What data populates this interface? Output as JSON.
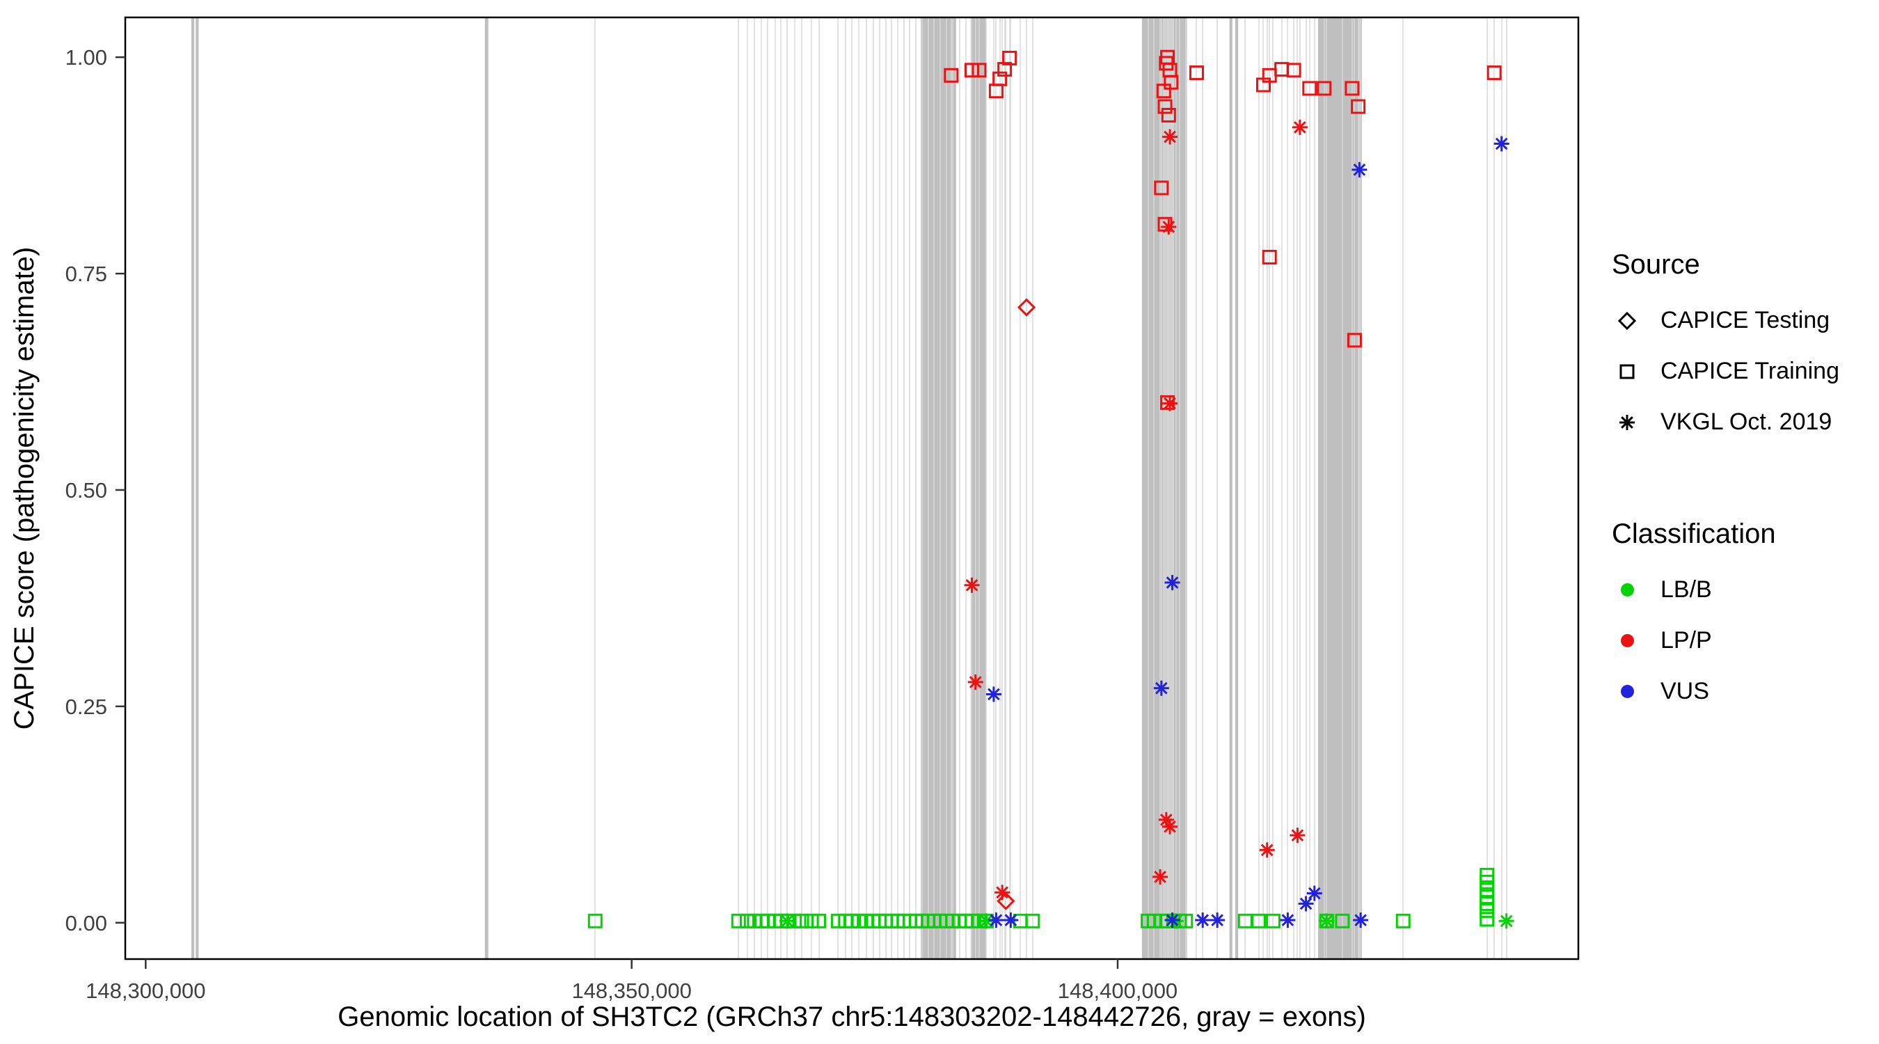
{
  "chart_data": {
    "type": "scatter",
    "title": "",
    "xlabel": "Genomic location of SH3TC2 (GRCh37 chr5:148303202-148442726, gray = exons)",
    "ylabel": "CAPICE score (pathogenicity estimate)",
    "xlim": [
      148297900,
      148447400
    ],
    "ylim": [
      -0.042,
      1.046
    ],
    "x_ticks": [
      {
        "value": 148300000,
        "label": "148,300,000"
      },
      {
        "value": 148350000,
        "label": "148,350,000"
      },
      {
        "value": 148400000,
        "label": "148,400,000"
      }
    ],
    "y_ticks": [
      {
        "value": 0.0,
        "label": "0.00"
      },
      {
        "value": 0.25,
        "label": "0.25"
      },
      {
        "value": 0.5,
        "label": "0.50"
      },
      {
        "value": 0.75,
        "label": "0.75"
      },
      {
        "value": 1.0,
        "label": "1.00"
      }
    ],
    "exon_color": "#bfbfbf",
    "variant_line_color": "#d9d9d9",
    "panel_border_color": "#000000",
    "colors": {
      "LB/B": "#00d400",
      "LP/P": "#ee1111",
      "VUS": "#2222dd"
    },
    "shapes": {
      "CAPICE Testing": "diamond",
      "CAPICE Training": "square",
      "VKGL Oct. 2019": "asterisk"
    },
    "exons": [
      [
        148304700,
        148305000
      ],
      [
        148305150,
        148305450
      ],
      [
        148334900,
        148335250
      ],
      [
        148379750,
        148383375
      ],
      [
        148384875,
        148386500
      ],
      [
        148402500,
        148407125
      ],
      [
        148411500,
        148411800
      ],
      [
        148412100,
        148412400
      ],
      [
        148420625,
        148425125
      ]
    ],
    "points": [
      [
        148346250,
        0.002,
        "square",
        "LB/B"
      ],
      [
        148361000,
        0.002,
        "square",
        "LB/B"
      ],
      [
        148361875,
        0.002,
        "square",
        "LB/B"
      ],
      [
        148362625,
        0.002,
        "square",
        "LB/B"
      ],
      [
        148363375,
        0.002,
        "square",
        "LB/B"
      ],
      [
        148364000,
        0.002,
        "square",
        "LB/B"
      ],
      [
        148364750,
        0.002,
        "square",
        "LB/B"
      ],
      [
        148365375,
        0.002,
        "square",
        "LB/B"
      ],
      [
        148366000,
        0.002,
        "square",
        "LB/B"
      ],
      [
        148366750,
        0.002,
        "square",
        "LB/B"
      ],
      [
        148367500,
        0.002,
        "square",
        "LB/B"
      ],
      [
        148368500,
        0.002,
        "square",
        "LB/B"
      ],
      [
        148369250,
        0.002,
        "square",
        "LB/B"
      ],
      [
        148371250,
        0.002,
        "square",
        "LB/B"
      ],
      [
        148372000,
        0.002,
        "square",
        "LB/B"
      ],
      [
        148372625,
        0.002,
        "square",
        "LB/B"
      ],
      [
        148373375,
        0.002,
        "square",
        "LB/B"
      ],
      [
        148374125,
        0.002,
        "square",
        "LB/B"
      ],
      [
        148374875,
        0.002,
        "square",
        "LB/B"
      ],
      [
        148375500,
        0.002,
        "square",
        "LB/B"
      ],
      [
        148376125,
        0.002,
        "square",
        "LB/B"
      ],
      [
        148376750,
        0.002,
        "square",
        "LB/B"
      ],
      [
        148377375,
        0.002,
        "square",
        "LB/B"
      ],
      [
        148378000,
        0.002,
        "square",
        "LB/B"
      ],
      [
        148378625,
        0.002,
        "square",
        "LB/B"
      ],
      [
        148379250,
        0.002,
        "square",
        "LB/B"
      ],
      [
        148379875,
        0.002,
        "square",
        "LB/B"
      ],
      [
        148380500,
        0.002,
        "square",
        "LB/B"
      ],
      [
        148381125,
        0.002,
        "square",
        "LB/B"
      ],
      [
        148381750,
        0.002,
        "square",
        "LB/B"
      ],
      [
        148382375,
        0.002,
        "square",
        "LB/B"
      ],
      [
        148383000,
        0.002,
        "square",
        "LB/B"
      ],
      [
        148383750,
        0.002,
        "square",
        "LB/B"
      ],
      [
        148384375,
        0.002,
        "square",
        "LB/B"
      ],
      [
        148385000,
        0.002,
        "square",
        "LB/B"
      ],
      [
        148385750,
        0.002,
        "square",
        "LB/B"
      ],
      [
        148386500,
        0.002,
        "square",
        "LB/B"
      ],
      [
        148390000,
        0.002,
        "square",
        "LB/B"
      ],
      [
        148391250,
        0.002,
        "square",
        "LB/B"
      ],
      [
        148403125,
        0.002,
        "square",
        "LB/B"
      ],
      [
        148403750,
        0.002,
        "square",
        "LB/B"
      ],
      [
        148404500,
        0.002,
        "square",
        "LB/B"
      ],
      [
        148405125,
        0.002,
        "square",
        "LB/B"
      ],
      [
        148405750,
        0.002,
        "square",
        "LB/B"
      ],
      [
        148406375,
        0.002,
        "square",
        "LB/B"
      ],
      [
        148407000,
        0.002,
        "square",
        "LB/B"
      ],
      [
        148413125,
        0.002,
        "square",
        "LB/B"
      ],
      [
        148414500,
        0.002,
        "square",
        "LB/B"
      ],
      [
        148416000,
        0.002,
        "square",
        "LB/B"
      ],
      [
        148421500,
        0.002,
        "square",
        "LB/B"
      ],
      [
        148423125,
        0.002,
        "square",
        "LB/B"
      ],
      [
        148429375,
        0.002,
        "square",
        "LB/B"
      ],
      [
        148438000,
        0.055,
        "square",
        "LB/B"
      ],
      [
        148438000,
        0.047,
        "square",
        "LB/B"
      ],
      [
        148438000,
        0.038,
        "square",
        "LB/B"
      ],
      [
        148438000,
        0.03,
        "square",
        "LB/B"
      ],
      [
        148438000,
        0.022,
        "square",
        "LB/B"
      ],
      [
        148438000,
        0.014,
        "square",
        "LB/B"
      ],
      [
        148438000,
        0.004,
        "square",
        "LB/B"
      ],
      [
        148366000,
        0.002,
        "asterisk",
        "LB/B"
      ],
      [
        148386500,
        0.002,
        "asterisk",
        "LB/B"
      ],
      [
        148406000,
        0.002,
        "asterisk",
        "LB/B"
      ],
      [
        148421500,
        0.002,
        "asterisk",
        "LB/B"
      ],
      [
        148440000,
        0.002,
        "asterisk",
        "LB/B"
      ],
      [
        148387500,
        0.003,
        "asterisk",
        "VUS"
      ],
      [
        148389000,
        0.003,
        "asterisk",
        "VUS"
      ],
      [
        148405625,
        0.003,
        "asterisk",
        "VUS"
      ],
      [
        148408750,
        0.003,
        "asterisk",
        "VUS"
      ],
      [
        148410250,
        0.003,
        "asterisk",
        "VUS"
      ],
      [
        148417500,
        0.003,
        "asterisk",
        "VUS"
      ],
      [
        148425000,
        0.003,
        "asterisk",
        "VUS"
      ],
      [
        148419375,
        0.022,
        "asterisk",
        "VUS"
      ],
      [
        148420250,
        0.034,
        "asterisk",
        "VUS"
      ],
      [
        148387250,
        0.264,
        "asterisk",
        "VUS"
      ],
      [
        148404500,
        0.271,
        "asterisk",
        "VUS"
      ],
      [
        148405625,
        0.393,
        "asterisk",
        "VUS"
      ],
      [
        148424875,
        0.87,
        "asterisk",
        "VUS"
      ],
      [
        148439500,
        0.9,
        "asterisk",
        "VUS"
      ],
      [
        148385000,
        0.39,
        "asterisk",
        "LP/P"
      ],
      [
        148385375,
        0.278,
        "asterisk",
        "LP/P"
      ],
      [
        148388125,
        0.035,
        "asterisk",
        "LP/P"
      ],
      [
        148404375,
        0.053,
        "asterisk",
        "LP/P"
      ],
      [
        148405000,
        0.119,
        "asterisk",
        "LP/P"
      ],
      [
        148405375,
        0.111,
        "asterisk",
        "LP/P"
      ],
      [
        148415375,
        0.084,
        "asterisk",
        "LP/P"
      ],
      [
        148418500,
        0.101,
        "asterisk",
        "LP/P"
      ],
      [
        148405250,
        0.804,
        "asterisk",
        "LP/P"
      ],
      [
        148405375,
        0.908,
        "asterisk",
        "LP/P"
      ],
      [
        148405375,
        0.6,
        "asterisk",
        "LP/P"
      ],
      [
        148418750,
        0.919,
        "asterisk",
        "LP/P"
      ],
      [
        148382875,
        0.979,
        "square",
        "LP/P"
      ],
      [
        148385000,
        0.985,
        "square",
        "LP/P"
      ],
      [
        148385750,
        0.985,
        "square",
        "LP/P"
      ],
      [
        148387500,
        0.961,
        "square",
        "LP/P"
      ],
      [
        148387875,
        0.975,
        "square",
        "LP/P"
      ],
      [
        148388375,
        0.986,
        "square",
        "LP/P"
      ],
      [
        148388875,
        0.999,
        "square",
        "LP/P"
      ],
      [
        148404500,
        0.849,
        "square",
        "LP/P"
      ],
      [
        148404750,
        0.961,
        "square",
        "LP/P"
      ],
      [
        148404875,
        0.943,
        "square",
        "LP/P"
      ],
      [
        148404875,
        0.807,
        "square",
        "LP/P"
      ],
      [
        148405000,
        0.993,
        "square",
        "LP/P"
      ],
      [
        148405125,
        1.0,
        "square",
        "LP/P"
      ],
      [
        148405125,
        0.601,
        "square",
        "LP/P"
      ],
      [
        148405250,
        0.933,
        "square",
        "LP/P"
      ],
      [
        148405375,
        0.985,
        "square",
        "LP/P"
      ],
      [
        148405500,
        0.971,
        "square",
        "LP/P"
      ],
      [
        148408125,
        0.982,
        "square",
        "LP/P"
      ],
      [
        148415000,
        0.968,
        "square",
        "LP/P"
      ],
      [
        148415625,
        0.979,
        "square",
        "LP/P"
      ],
      [
        148415625,
        0.769,
        "square",
        "LP/P"
      ],
      [
        148416875,
        0.986,
        "square",
        "LP/P"
      ],
      [
        148418125,
        0.985,
        "square",
        "LP/P"
      ],
      [
        148419750,
        0.964,
        "square",
        "LP/P"
      ],
      [
        148421250,
        0.964,
        "square",
        "LP/P"
      ],
      [
        148424125,
        0.964,
        "square",
        "LP/P"
      ],
      [
        148424375,
        0.673,
        "square",
        "LP/P"
      ],
      [
        148424750,
        0.943,
        "square",
        "LP/P"
      ],
      [
        148438750,
        0.982,
        "square",
        "LP/P"
      ],
      [
        148390625,
        0.711,
        "diamond",
        "LP/P"
      ],
      [
        148388500,
        0.025,
        "diamond",
        "LP/P"
      ]
    ]
  },
  "legend": {
    "source": {
      "title": "Source",
      "items": [
        {
          "label": "CAPICE Testing",
          "shape": "diamond"
        },
        {
          "label": "CAPICE Training",
          "shape": "square"
        },
        {
          "label": "VKGL Oct. 2019",
          "shape": "asterisk"
        }
      ]
    },
    "classification": {
      "title": "Classification",
      "items": [
        {
          "label": "LB/B",
          "color": "#00d400"
        },
        {
          "label": "LP/P",
          "color": "#ee1111"
        },
        {
          "label": "VUS",
          "color": "#2222dd"
        }
      ]
    }
  }
}
